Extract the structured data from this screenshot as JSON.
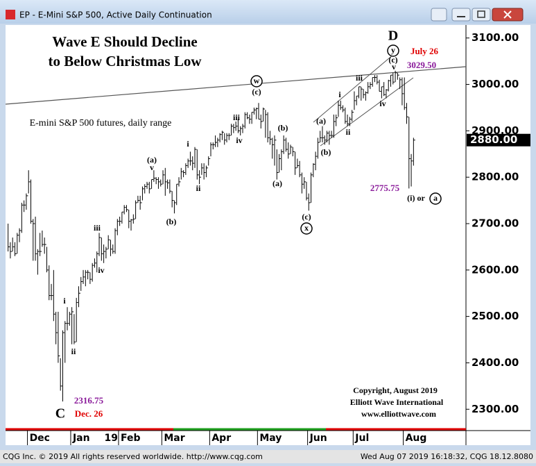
{
  "window": {
    "title": "EP - E-Mini S&P 500, Active Daily Continuation",
    "status_left": "CQG Inc. © 2019 All rights reserved worldwide. http://www.cqg.com",
    "status_right": "Wed Aug 07 2019 16:18:32, CQG 18.12.8080"
  },
  "chart_data": {
    "type": "ohlc",
    "color": "#000000",
    "categories": [
      null,
      null,
      null,
      null,
      null,
      null,
      null,
      null,
      null,
      "Dec",
      null,
      null,
      null,
      null,
      null,
      null,
      null,
      null,
      null,
      null,
      null,
      null,
      null,
      null,
      null,
      null,
      null,
      null,
      "Jan",
      null,
      null,
      null,
      null,
      null,
      null,
      null,
      null,
      null,
      null,
      null,
      null,
      null,
      null,
      null,
      null,
      null,
      null,
      null,
      null,
      "Feb",
      null,
      null,
      null,
      null,
      null,
      null,
      null,
      null,
      null,
      null,
      null,
      null,
      null,
      null,
      null,
      null,
      null,
      null,
      "Mar",
      null,
      null,
      null,
      null,
      null,
      null,
      null,
      null,
      null,
      null,
      null,
      null,
      null,
      null,
      null,
      null,
      null,
      null,
      null,
      null,
      "Apr",
      null,
      null,
      null,
      null,
      null,
      null,
      null,
      null,
      null,
      null,
      null,
      null,
      null,
      null,
      null,
      null,
      null,
      null,
      null,
      null,
      "May",
      null,
      null,
      null,
      null,
      null,
      null,
      null,
      null,
      null,
      null,
      null,
      null,
      null,
      null,
      null,
      null,
      null,
      null,
      null,
      null,
      null,
      "Jun",
      null,
      null,
      null,
      null,
      null,
      null,
      null,
      null,
      null,
      null,
      null,
      null,
      null,
      null,
      null,
      null,
      null,
      null,
      null,
      "Jul",
      null,
      null,
      null,
      null,
      null,
      null,
      null,
      null,
      null,
      null,
      null,
      null,
      null,
      null,
      null,
      null,
      null,
      null,
      null,
      null,
      null,
      "Aug",
      null,
      null,
      null,
      null
    ],
    "year_label": "19",
    "high": [
      2700,
      2660,
      2670,
      2660,
      2680,
      2690,
      2745,
      2750,
      2765,
      2815,
      2795,
      2710,
      2715,
      2645,
      2680,
      2685,
      2670,
      2650,
      2610,
      2570,
      2600,
      2510,
      2510,
      2410,
      2470,
      2490,
      2520,
      2510,
      2520,
      2505,
      2540,
      2565,
      2585,
      2600,
      2600,
      2600,
      2595,
      2615,
      2625,
      2640,
      2680,
      2670,
      2655,
      2650,
      2675,
      2665,
      2655,
      2690,
      2710,
      2715,
      2725,
      2740,
      2740,
      2730,
      2710,
      2720,
      2750,
      2760,
      2760,
      2780,
      2785,
      2790,
      2790,
      2795,
      2815,
      2800,
      2800,
      2795,
      2815,
      2820,
      2795,
      2795,
      2770,
      2750,
      2785,
      2800,
      2820,
      2815,
      2830,
      2840,
      2855,
      2845,
      2865,
      2860,
      2815,
      2830,
      2830,
      2825,
      2845,
      2875,
      2875,
      2890,
      2885,
      2895,
      2900,
      2895,
      2895,
      2895,
      2915,
      2915,
      2920,
      2925,
      2910,
      2915,
      2940,
      2940,
      2935,
      2940,
      2950,
      2950,
      2960,
      2935,
      2950,
      2945,
      2940,
      2900,
      2885,
      2890,
      2860,
      2850,
      2860,
      2890,
      2885,
      2875,
      2870,
      2865,
      2855,
      2840,
      2835,
      2810,
      2800,
      2790,
      2765,
      2810,
      2830,
      2855,
      2885,
      2900,
      2910,
      2890,
      2900,
      2900,
      2900,
      2935,
      2935,
      2965,
      2965,
      2955,
      2950,
      2935,
      2930,
      2945,
      2985,
      2975,
      2995,
      2995,
      2990,
      2985,
      3005,
      3005,
      3015,
      3020,
      3020,
      3010,
      2995,
      3005,
      2990,
      3010,
      3020,
      3025,
      3029.5,
      3025,
      3015,
      3015,
      3015,
      2960,
      2930,
      2850,
      2885
    ],
    "low": [
      2640,
      2625,
      2640,
      2630,
      2635,
      2660,
      2680,
      2725,
      2730,
      2765,
      2700,
      2620,
      2620,
      2590,
      2630,
      2650,
      2635,
      2595,
      2535,
      2535,
      2490,
      2440,
      2400,
      2340,
      2316.75,
      2400,
      2470,
      2480,
      2440,
      2440,
      2445,
      2520,
      2555,
      2570,
      2565,
      2580,
      2570,
      2575,
      2605,
      2595,
      2630,
      2620,
      2615,
      2625,
      2645,
      2630,
      2635,
      2635,
      2675,
      2695,
      2700,
      2720,
      2725,
      2690,
      2685,
      2700,
      2710,
      2745,
      2730,
      2750,
      2765,
      2775,
      2765,
      2775,
      2790,
      2785,
      2775,
      2780,
      2785,
      2760,
      2775,
      2765,
      2735,
      2722,
      2740,
      2780,
      2795,
      2800,
      2805,
      2820,
      2825,
      2815,
      2820,
      2795,
      2785,
      2805,
      2795,
      2800,
      2825,
      2845,
      2860,
      2865,
      2865,
      2875,
      2880,
      2870,
      2875,
      2880,
      2890,
      2895,
      2900,
      2895,
      2890,
      2895,
      2905,
      2925,
      2915,
      2915,
      2935,
      2925,
      2925,
      2905,
      2920,
      2885,
      2875,
      2870,
      2840,
      2825,
      2795,
      2810,
      2815,
      2850,
      2855,
      2840,
      2850,
      2845,
      2805,
      2820,
      2800,
      2765,
      2775,
      2750,
      2728,
      2745,
      2800,
      2815,
      2840,
      2875,
      2875,
      2870,
      2875,
      2870,
      2885,
      2885,
      2910,
      2930,
      2945,
      2940,
      2915,
      2910,
      2910,
      2920,
      2945,
      2955,
      2970,
      2965,
      2970,
      2965,
      2980,
      2990,
      2995,
      3005,
      3000,
      2985,
      2970,
      2975,
      2970,
      2985,
      2995,
      3000,
      3005,
      3010,
      2990,
      2955,
      2945,
      2915,
      2775.75,
      2780,
      2825
    ],
    "close": [
      2650,
      2640,
      2650,
      2635,
      2675,
      2685,
      2740,
      2740,
      2760,
      2790,
      2705,
      2700,
      2635,
      2640,
      2640,
      2655,
      2655,
      2600,
      2545,
      2545,
      2505,
      2465,
      2415,
      2350,
      2465,
      2485,
      2485,
      2505,
      2510,
      2445,
      2530,
      2550,
      2575,
      2585,
      2595,
      2595,
      2580,
      2610,
      2615,
      2635,
      2670,
      2635,
      2640,
      2645,
      2665,
      2645,
      2640,
      2685,
      2705,
      2705,
      2725,
      2735,
      2730,
      2705,
      2708,
      2710,
      2745,
      2750,
      2745,
      2775,
      2780,
      2785,
      2775,
      2795,
      2798,
      2795,
      2790,
      2785,
      2805,
      2790,
      2788,
      2770,
      2750,
      2745,
      2785,
      2790,
      2812,
      2810,
      2825,
      2835,
      2835,
      2830,
      2860,
      2805,
      2800,
      2820,
      2810,
      2820,
      2840,
      2870,
      2870,
      2875,
      2880,
      2892,
      2897,
      2880,
      2890,
      2890,
      2910,
      2907,
      2910,
      2900,
      2905,
      2910,
      2935,
      2928,
      2925,
      2940,
      2945,
      2948,
      2925,
      2920,
      2947,
      2935,
      2885,
      2882,
      2870,
      2880,
      2810,
      2840,
      2855,
      2880,
      2860,
      2850,
      2865,
      2855,
      2820,
      2825,
      2805,
      2785,
      2790,
      2755,
      2745,
      2805,
      2828,
      2845,
      2875,
      2885,
      2885,
      2880,
      2895,
      2890,
      2890,
      2920,
      2928,
      2955,
      2950,
      2945,
      2920,
      2915,
      2925,
      2940,
      2965,
      2975,
      2995,
      2990,
      2978,
      2982,
      2995,
      3000,
      3015,
      3015,
      3005,
      2985,
      2995,
      2978,
      2988,
      3008,
      3020,
      3005,
      3025,
      3020,
      3010,
      2980,
      2950,
      2930,
      2840,
      2835,
      2880
    ],
    "ylim": [
      2257,
      3125
    ],
    "yticks": [
      {
        "value": 2300,
        "label": "2300.00"
      },
      {
        "value": 2400,
        "label": "2400.00"
      },
      {
        "value": 2500,
        "label": "2500.00"
      },
      {
        "value": 2600,
        "label": "2600.00"
      },
      {
        "value": 2700,
        "label": "2700.00"
      },
      {
        "value": 2800,
        "label": "2800.00"
      },
      {
        "value": 2900,
        "label": "2900.00"
      },
      {
        "value": 3000,
        "label": "3000.00"
      },
      {
        "value": 3100,
        "label": "3100.00"
      }
    ],
    "last_price": {
      "value": 2880,
      "label": "2880.00"
    },
    "annotations": [
      "Wave E Should Decline",
      "to Below Christmas Low",
      "E-mini S&P 500 futures, daily range",
      "D",
      "y",
      "(c)",
      "v",
      "July 26",
      "3029.50",
      "w",
      "(c)",
      "iii",
      "iv",
      "(b)",
      "(a)",
      "(c)",
      "x",
      "(a)",
      "(b)",
      "i",
      "ii",
      "iii",
      "iv",
      "2775.75",
      "(i) or",
      "a",
      "(a)",
      "v",
      "(b)",
      "i",
      "ii",
      "iii",
      "iv",
      "i",
      "ii",
      "2316.75",
      "C",
      "Dec. 26",
      "Copyright, August 2019",
      "Elliott Wave International",
      "www.elliottwave.com"
    ]
  }
}
